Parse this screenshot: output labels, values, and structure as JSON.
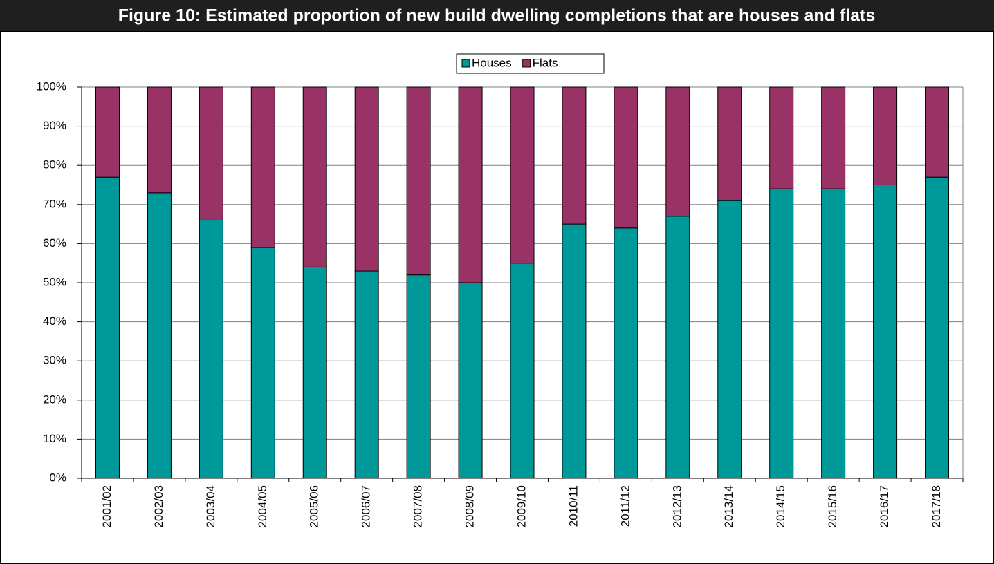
{
  "chart_data": {
    "type": "stacked_bar",
    "title": "Figure 10: Estimated proportion of new build dwelling completions that are houses and flats",
    "categories": [
      "2001/02",
      "2002/03",
      "2003/04",
      "2004/05",
      "2005/06",
      "2006/07",
      "2007/08",
      "2008/09",
      "2009/10",
      "2010/11",
      "2011/12",
      "2012/13",
      "2013/14",
      "2014/15",
      "2015/16",
      "2016/17",
      "2017/18"
    ],
    "series": [
      {
        "name": "Houses",
        "color": "#009999",
        "values": [
          77,
          73,
          66,
          59,
          54,
          53,
          52,
          50,
          55,
          65,
          64,
          67,
          71,
          74,
          74,
          75,
          77
        ]
      },
      {
        "name": "Flats",
        "color": "#993366",
        "values": [
          23,
          27,
          34,
          41,
          46,
          47,
          48,
          50,
          45,
          35,
          36,
          33,
          29,
          26,
          26,
          25,
          23
        ]
      }
    ],
    "ylim": [
      0,
      100
    ],
    "yticks": [
      {
        "value": 0,
        "label": "0%"
      },
      {
        "value": 10,
        "label": "10%"
      },
      {
        "value": 20,
        "label": "20%"
      },
      {
        "value": 30,
        "label": "30%"
      },
      {
        "value": 40,
        "label": "40%"
      },
      {
        "value": 50,
        "label": "50%"
      },
      {
        "value": 60,
        "label": "60%"
      },
      {
        "value": 70,
        "label": "70%"
      },
      {
        "value": 80,
        "label": "80%"
      },
      {
        "value": 90,
        "label": "90%"
      },
      {
        "value": 100,
        "label": "100%"
      }
    ],
    "grid": true,
    "legend": "top"
  }
}
